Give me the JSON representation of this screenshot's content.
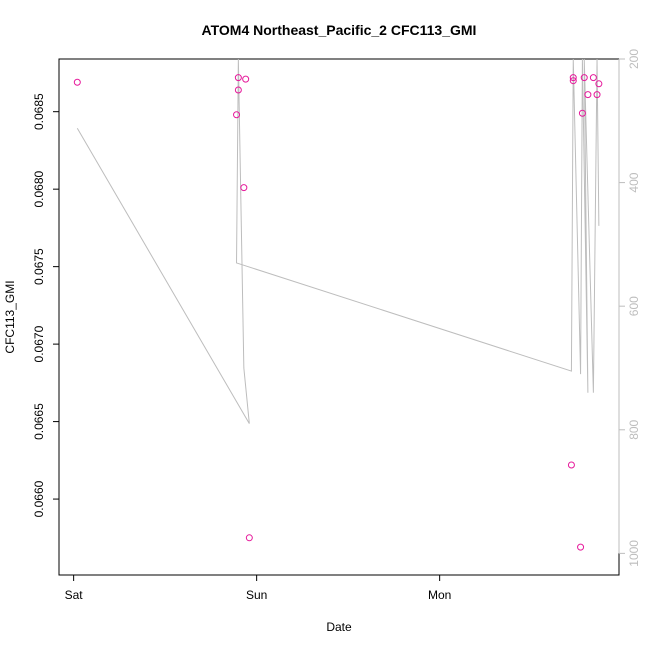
{
  "chart_data": {
    "type": "scatter",
    "title": "ATOM4 Northeast_Pacific_2 CFC113_GMI",
    "xlabel": "Date",
    "ylabel": "CFC113_GMI",
    "x_axis": {
      "unit": "days",
      "range": [
        -0.08,
        2.98
      ],
      "ticks": [
        {
          "value": 0,
          "label": "Sat"
        },
        {
          "value": 1,
          "label": "Sun"
        },
        {
          "value": 2,
          "label": "Mon"
        }
      ]
    },
    "y_axis": {
      "range": [
        0.06551,
        0.06884
      ],
      "ticks": [
        {
          "value": 0.066,
          "label": "0.0660"
        },
        {
          "value": 0.0665,
          "label": "0.0665"
        },
        {
          "value": 0.067,
          "label": "0.0670"
        },
        {
          "value": 0.0675,
          "label": "0.0675"
        },
        {
          "value": 0.068,
          "label": "0.0680"
        },
        {
          "value": 0.0685,
          "label": "0.0685"
        }
      ]
    },
    "y2_axis": {
      "range": [
        1035,
        200
      ],
      "reversed": true,
      "color": "#bdbdbd",
      "ticks": [
        {
          "value": 200,
          "label": "200"
        },
        {
          "value": 400,
          "label": "400"
        },
        {
          "value": 600,
          "label": "600"
        },
        {
          "value": 800,
          "label": "800"
        },
        {
          "value": 1000,
          "label": "1000"
        }
      ]
    },
    "series": [
      {
        "kind": "points",
        "axis": "left",
        "color": "#e6199b",
        "marker": "open-circle",
        "x": [
          0.02,
          0.89,
          0.9,
          0.9,
          0.93,
          0.94,
          0.96,
          2.72,
          2.73,
          2.73,
          2.77,
          2.78,
          2.79,
          2.81,
          2.84,
          2.86,
          2.87
        ],
        "y": [
          0.06869,
          0.06848,
          0.06864,
          0.06872,
          0.06801,
          0.06871,
          0.06575,
          0.06622,
          0.0687,
          0.06872,
          0.06569,
          0.06849,
          0.06872,
          0.06861,
          0.06872,
          0.06861,
          0.06868
        ]
      },
      {
        "kind": "line",
        "axis": "right",
        "color": "#bdbdbd",
        "x": [
          0.02,
          0.96,
          0.93,
          0.9,
          0.89,
          2.72,
          2.73,
          2.77,
          2.78,
          2.81,
          2.79,
          2.84,
          2.86,
          2.87
        ],
        "y": [
          312,
          790,
          700,
          200,
          530,
          705,
          200,
          710,
          200,
          740,
          200,
          740,
          200,
          470
        ]
      }
    ],
    "grid": false,
    "legend": "none"
  }
}
